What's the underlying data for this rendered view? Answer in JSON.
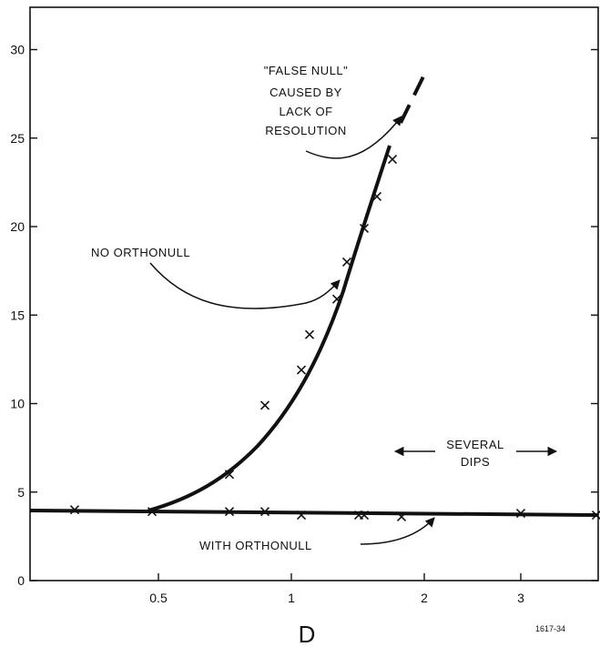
{
  "chart_data": {
    "type": "scatter",
    "title": "",
    "xlabel": "D",
    "ylabel": "",
    "y_ticks": [
      0,
      5,
      10,
      15,
      20,
      25,
      30
    ],
    "y_tick_labels": [
      "0",
      "5",
      "10",
      "15",
      "20",
      "25",
      "30"
    ],
    "x_ticks": [
      0.5,
      1,
      2,
      3
    ],
    "x_tick_labels": [
      "0.5",
      "1",
      "2",
      "3"
    ],
    "ylim": [
      0,
      32
    ],
    "grid": false,
    "series": [
      {
        "name": "NO ORTHONULL",
        "x": [
          0.72,
          0.87,
          1.05,
          1.1,
          1.27,
          1.33,
          1.52,
          1.6,
          1.77
        ],
        "y": [
          6,
          9.9,
          11.9,
          13.9,
          15.9,
          18,
          19.9,
          21.7,
          23.8
        ]
      },
      {
        "name": "WITH ORTHONULL",
        "x": [
          0.24,
          0.48,
          0.72,
          0.87,
          1.05,
          1.38,
          1.52,
          1.83,
          3.0,
          3.95
        ],
        "y": [
          4.0,
          3.9,
          3.9,
          3.9,
          3.7,
          3.7,
          3.7,
          3.6,
          3.8,
          3.7
        ]
      }
    ],
    "annotations": {
      "false_null_1": "\"FALSE NULL\"",
      "false_null_2": "CAUSED BY",
      "false_null_3": "LACK OF",
      "false_null_4": "RESOLUTION",
      "no_orthonull": "NO ORTHONULL",
      "with_orthonull": "WITH ORTHONULL",
      "several_1": "SEVERAL",
      "several_2": "DIPS"
    },
    "figure_id": "1617-34"
  }
}
